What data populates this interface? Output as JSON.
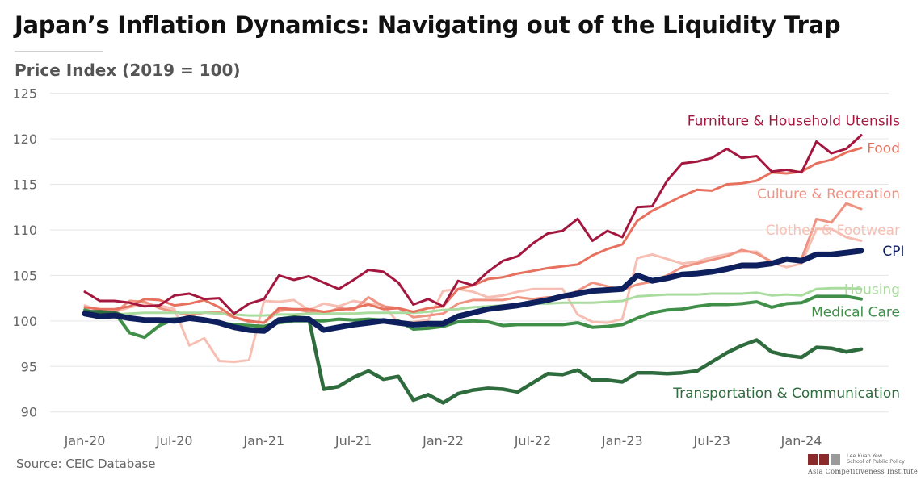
{
  "header": {
    "title": "Japan’s Inflation Dynamics: Navigating out of the Liquidity Trap",
    "subtitle": "Price Index (2019 = 100)"
  },
  "footer": {
    "source": "Source: CEIC Database",
    "logo_line1": "Lee Kuan Yew",
    "logo_line2": "School of Public Policy",
    "logo_sub": "Asia Competitiveness Institute"
  },
  "colors": {
    "cpi": "#0d1f5c",
    "furniture": "#a3173f",
    "food": "#e8705e",
    "culture": "#ef9282",
    "clothes": "#f7bfb3",
    "housing": "#a9dc9e",
    "medical": "#3f8f48",
    "transport": "#2e6b3d",
    "grid": "#e6e6e6"
  },
  "chart_data": {
    "type": "line",
    "ylabel": "Price Index (2019 = 100)",
    "ylim": [
      89,
      125.5
    ],
    "yticks": [
      90,
      95,
      100,
      105,
      110,
      115,
      120,
      125
    ],
    "x_start": "2020-01",
    "x_end": "2024-05",
    "xticks": [
      {
        "label": "Jan-20",
        "month": "2020-01"
      },
      {
        "label": "Jul-20",
        "month": "2020-07"
      },
      {
        "label": "Jan-21",
        "month": "2021-01"
      },
      {
        "label": "Jul-21",
        "month": "2021-07"
      },
      {
        "label": "Jan-22",
        "month": "2022-01"
      },
      {
        "label": "Jul-22",
        "month": "2022-07"
      },
      {
        "label": "Jan-23",
        "month": "2023-01"
      },
      {
        "label": "Jul-23",
        "month": "2023-07"
      },
      {
        "label": "Jan-24",
        "month": "2024-01"
      }
    ],
    "series": [
      {
        "name": "Furniture & Household Utensils",
        "color_key": "furniture",
        "label_month": "2024-05",
        "label_value": 122.0,
        "values": [
          103.2,
          102.2,
          102.2,
          102.0,
          101.6,
          101.7,
          102.8,
          103.0,
          102.4,
          102.5,
          100.8,
          101.9,
          102.4,
          105.0,
          104.5,
          104.9,
          104.2,
          103.5,
          104.5,
          105.6,
          105.4,
          104.2,
          101.8,
          102.4,
          101.6,
          104.4,
          103.9,
          105.4,
          106.6,
          107.1,
          108.5,
          109.6,
          109.9,
          111.2,
          108.8,
          109.9,
          109.2,
          112.5,
          112.6,
          115.4,
          117.3,
          117.5,
          117.9,
          118.9,
          117.9,
          118.1,
          116.4,
          116.6,
          116.3,
          119.7,
          118.4,
          118.9,
          120.4
        ]
      },
      {
        "name": "Food",
        "color_key": "food",
        "label_month": "2024-05",
        "label_value": 119.0,
        "values": [
          101.5,
          101.3,
          101.3,
          101.6,
          102.4,
          102.3,
          101.7,
          101.9,
          102.3,
          101.5,
          100.4,
          100.0,
          99.8,
          101.4,
          101.3,
          101.3,
          101.0,
          101.2,
          101.4,
          101.8,
          101.3,
          101.4,
          101.0,
          101.4,
          101.6,
          103.5,
          103.9,
          104.6,
          104.8,
          105.2,
          105.5,
          105.8,
          106.0,
          106.2,
          107.2,
          107.9,
          108.4,
          111.0,
          112.1,
          112.9,
          113.7,
          114.4,
          114.3,
          115.0,
          115.1,
          115.4,
          116.3,
          116.2,
          116.4,
          117.3,
          117.7,
          118.5,
          119.0
        ]
      },
      {
        "name": "Culture & Recreation",
        "color_key": "culture",
        "label_month": "2024-05",
        "label_value": 114.0,
        "values": [
          101.0,
          101.1,
          100.9,
          102.2,
          102.1,
          101.4,
          101.0,
          100.6,
          100.9,
          101.0,
          100.4,
          99.9,
          99.8,
          101.1,
          101.3,
          101.0,
          100.8,
          101.4,
          101.2,
          102.6,
          101.6,
          101.4,
          100.4,
          100.6,
          100.8,
          101.9,
          102.3,
          102.3,
          102.3,
          102.6,
          102.4,
          102.6,
          102.6,
          103.3,
          104.2,
          103.8,
          103.4,
          104.0,
          104.3,
          105.0,
          105.9,
          106.3,
          106.7,
          107.1,
          107.8,
          107.4,
          106.5,
          106.7,
          106.8,
          111.2,
          110.8,
          112.9,
          112.3
        ]
      },
      {
        "name": "Clothes & Footwear",
        "color_key": "clothes",
        "label_month": "2024-05",
        "label_value": 110.0,
        "values": [
          101.7,
          101.1,
          101.0,
          101.5,
          101.8,
          101.7,
          101.3,
          97.3,
          98.1,
          95.6,
          95.5,
          95.7,
          102.2,
          102.1,
          102.3,
          101.2,
          101.9,
          101.6,
          102.2,
          101.9,
          101.7,
          99.8,
          99.9,
          100.1,
          103.3,
          103.5,
          103.2,
          102.6,
          102.8,
          103.2,
          103.5,
          103.5,
          103.5,
          100.7,
          99.9,
          99.8,
          100.2,
          106.9,
          107.3,
          106.8,
          106.3,
          106.5,
          107.0,
          107.3,
          107.6,
          107.6,
          106.4,
          105.9,
          106.3,
          110.1,
          110.1,
          109.2,
          108.8
        ]
      },
      {
        "name": "CPI",
        "color_key": "cpi",
        "label_month": "2024-05",
        "label_value": 107.7,
        "values": [
          100.8,
          100.5,
          100.6,
          100.3,
          100.1,
          100.1,
          100.0,
          100.3,
          100.1,
          99.8,
          99.3,
          99.0,
          98.9,
          100.1,
          100.2,
          100.2,
          99.0,
          99.3,
          99.6,
          99.8,
          100.0,
          99.8,
          99.6,
          99.7,
          99.7,
          100.5,
          100.9,
          101.3,
          101.5,
          101.7,
          102.0,
          102.3,
          102.7,
          103.0,
          103.3,
          103.4,
          103.5,
          105.0,
          104.4,
          104.7,
          105.1,
          105.2,
          105.4,
          105.7,
          106.1,
          106.1,
          106.3,
          106.8,
          106.6,
          107.3,
          107.3,
          107.5,
          107.7
        ]
      },
      {
        "name": "Housing",
        "color_key": "housing",
        "label_month": "2024-05",
        "label_value": 103.5,
        "values": [
          100.7,
          100.8,
          100.7,
          100.8,
          100.9,
          100.9,
          100.9,
          100.9,
          100.9,
          100.8,
          100.7,
          100.6,
          100.6,
          100.7,
          100.7,
          100.8,
          100.8,
          100.8,
          100.8,
          100.9,
          100.9,
          100.9,
          100.9,
          101.0,
          101.2,
          101.3,
          101.5,
          101.6,
          101.7,
          101.8,
          101.9,
          101.9,
          102.0,
          102.0,
          102.0,
          102.1,
          102.2,
          102.7,
          102.8,
          102.9,
          102.9,
          102.9,
          103.0,
          103.0,
          103.0,
          103.1,
          102.8,
          102.9,
          102.8,
          103.5,
          103.6,
          103.6,
          103.5
        ]
      },
      {
        "name": "Medical Care",
        "color_key": "medical",
        "label_month": "2024-05",
        "label_value": 101.0,
        "values": [
          101.2,
          100.8,
          100.9,
          98.7,
          98.2,
          99.5,
          100.2,
          100.2,
          100.1,
          99.8,
          99.6,
          99.5,
          99.4,
          99.8,
          100.0,
          100.0,
          100.0,
          100.2,
          100.1,
          100.2,
          100.1,
          100.0,
          99.1,
          99.2,
          99.4,
          99.9,
          100.0,
          99.9,
          99.5,
          99.6,
          99.6,
          99.6,
          99.6,
          99.8,
          99.3,
          99.4,
          99.6,
          100.3,
          100.9,
          101.2,
          101.3,
          101.6,
          101.8,
          101.8,
          101.9,
          102.1,
          101.5,
          101.9,
          102.0,
          102.7,
          102.7,
          102.7,
          102.4
        ]
      },
      {
        "name": "Transportation & Communication",
        "color_key": "transport",
        "label_month": "2024-05",
        "label_value": 92.1,
        "values": [
          101.0,
          101.0,
          100.9,
          100.3,
          100.1,
          100.1,
          100.2,
          100.2,
          100.1,
          99.7,
          99.4,
          99.0,
          99.1,
          100.2,
          100.4,
          100.3,
          92.5,
          92.8,
          93.8,
          94.5,
          93.6,
          93.9,
          91.3,
          91.9,
          91.0,
          92.0,
          92.4,
          92.6,
          92.5,
          92.2,
          93.2,
          94.2,
          94.1,
          94.6,
          93.5,
          93.5,
          93.3,
          94.3,
          94.3,
          94.2,
          94.3,
          94.5,
          95.5,
          96.5,
          97.3,
          97.9,
          96.6,
          96.2,
          96.0,
          97.1,
          97.0,
          96.6,
          96.9
        ]
      }
    ]
  }
}
